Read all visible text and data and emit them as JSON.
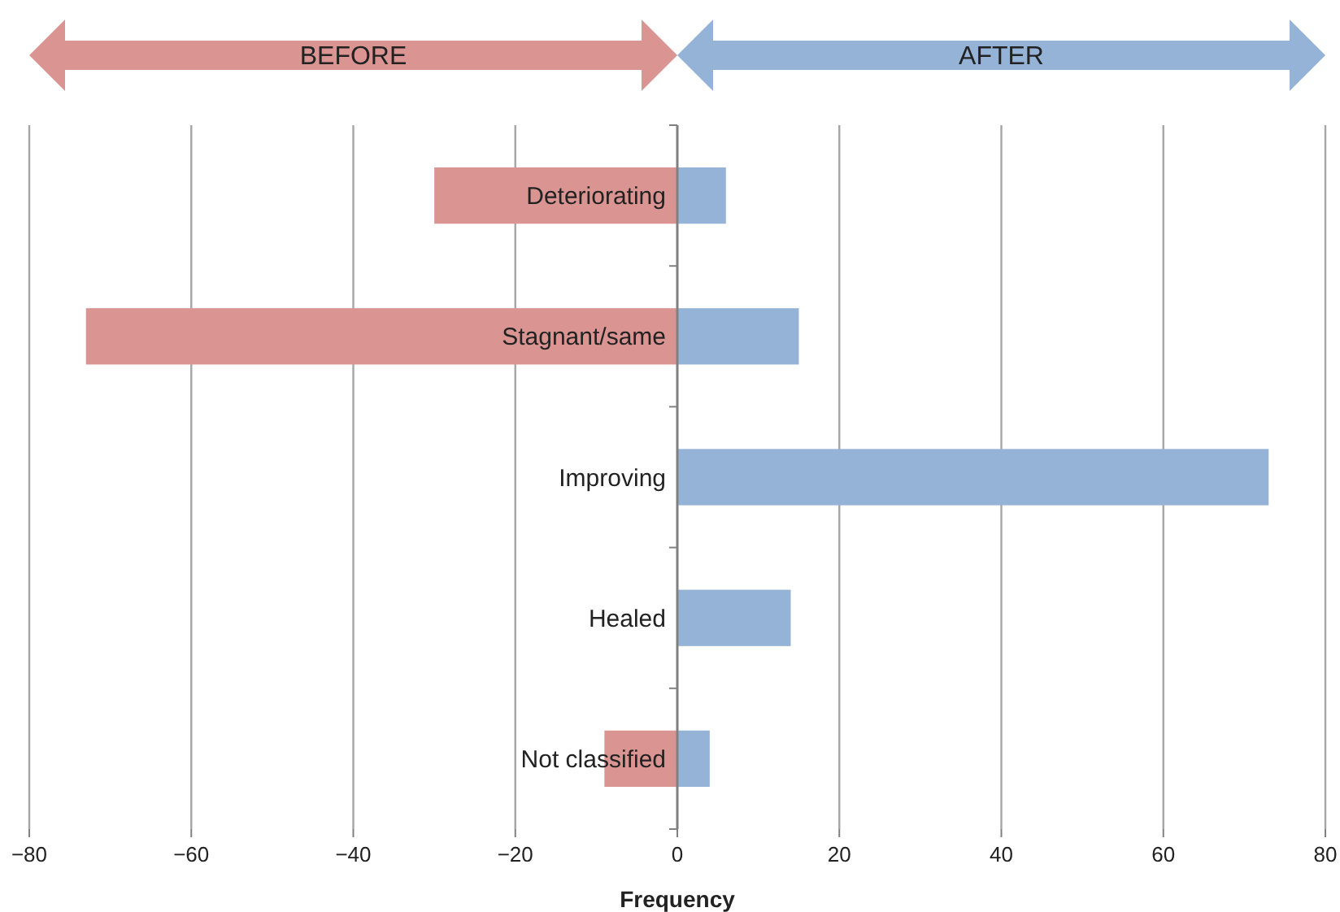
{
  "chart_data": {
    "type": "bar",
    "orientation": "horizontal",
    "stacked": true,
    "xlabel": "Frequency",
    "categories": [
      "Deteriorating",
      "Stagnant/same",
      "Improving",
      "Healed",
      "Not classified"
    ],
    "series": [
      {
        "name": "BEFORE",
        "color": "#da9593",
        "values": [
          -30,
          -73,
          0,
          0,
          -9
        ]
      },
      {
        "name": "AFTER",
        "color": "#95b3d7",
        "values": [
          6,
          15,
          73,
          14,
          4
        ]
      }
    ],
    "xlim": [
      -80,
      80
    ],
    "xticks": [
      {
        "value": -80,
        "label": "−80"
      },
      {
        "value": -60,
        "label": "−60"
      },
      {
        "value": -40,
        "label": "−40"
      },
      {
        "value": -20,
        "label": "−20"
      },
      0,
      20,
      40,
      60,
      80
    ],
    "grid": "x",
    "legend": "top"
  }
}
